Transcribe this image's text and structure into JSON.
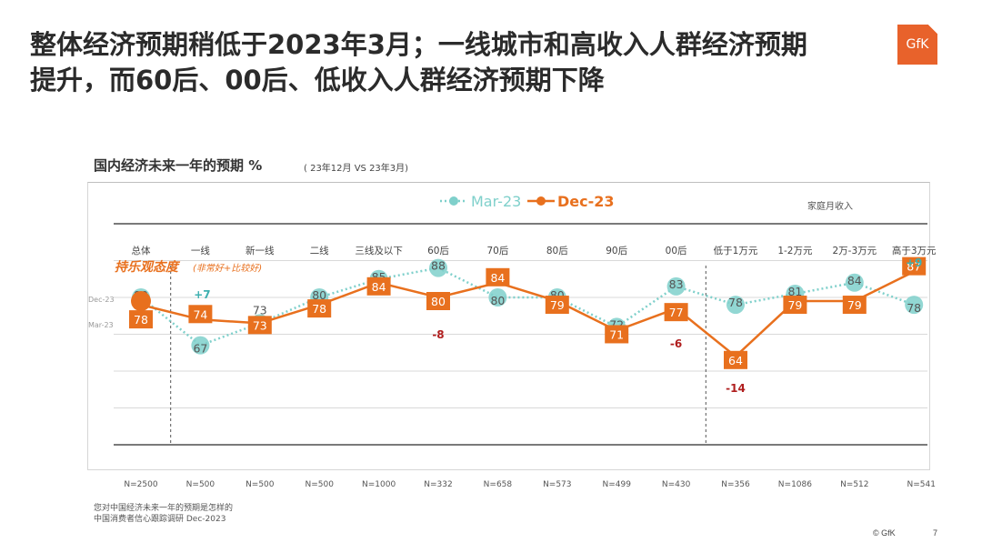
{
  "slide": {
    "title_line1": "整体经济预期稍低于2023年3月；一线城市和高收入人群经济预期",
    "title_line2": "提升，而60后、00后、低收入人群经济预期下降",
    "logo_text": "GfK",
    "source_line1": "您对中国经济未来一年的预期是怎样的",
    "source_line2": "中国消费者信心跟踪调研 Dec-2023",
    "copyright": "© GfK",
    "page_number": "7"
  },
  "chart_data": {
    "type": "line",
    "title": "国内经济未来一年的预期 %",
    "subtitle": "( 23年12月 VS 23年3月)",
    "ylabel": "持乐观态度",
    "ylabel_note": "(非常好+比较好)",
    "group_label": "家庭月收入",
    "categories": [
      "总体",
      "一线",
      "新一线",
      "二线",
      "三线及以下",
      "60后",
      "70后",
      "80后",
      "90后",
      "00后",
      "低于1万元",
      "1-2万元",
      "2万-3万元",
      "高于3万元"
    ],
    "sample_sizes": [
      "N=2500",
      "N=500",
      "N=500",
      "N=500",
      "N=1000",
      "N=332",
      "N=658",
      "N=573",
      "N=499",
      "N=430",
      "N=356",
      "N=1086",
      "N=512",
      "N=541"
    ],
    "series": [
      {
        "name": "Mar-23",
        "row_label": "Mar-23",
        "color": "#7fd0cb",
        "style": "dotted",
        "values": [
          80,
          67,
          73,
          80,
          85,
          88,
          80,
          80,
          72,
          83,
          78,
          81,
          84,
          78
        ]
      },
      {
        "name": "Dec-23",
        "row_label": "Dec-23",
        "color": "#e8701e",
        "style": "solid",
        "values": [
          78,
          74,
          73,
          78,
          84,
          80,
          84,
          79,
          71,
          77,
          64,
          79,
          79,
          87
        ]
      }
    ],
    "changes": [
      {
        "index": 1,
        "text": "+7",
        "color": "#3fb0b0"
      },
      {
        "index": 5,
        "text": "-8",
        "color": "#b01e1e"
      },
      {
        "index": 9,
        "text": "-6",
        "color": "#b01e1e"
      },
      {
        "index": 10,
        "text": "-14",
        "color": "#b01e1e"
      },
      {
        "index": 13,
        "text": "+9",
        "color": "#3fb0b0"
      }
    ],
    "group_dividers_after": [
      0,
      9
    ],
    "ylim": [
      40,
      100
    ],
    "grid": true,
    "legend": "top-center"
  }
}
